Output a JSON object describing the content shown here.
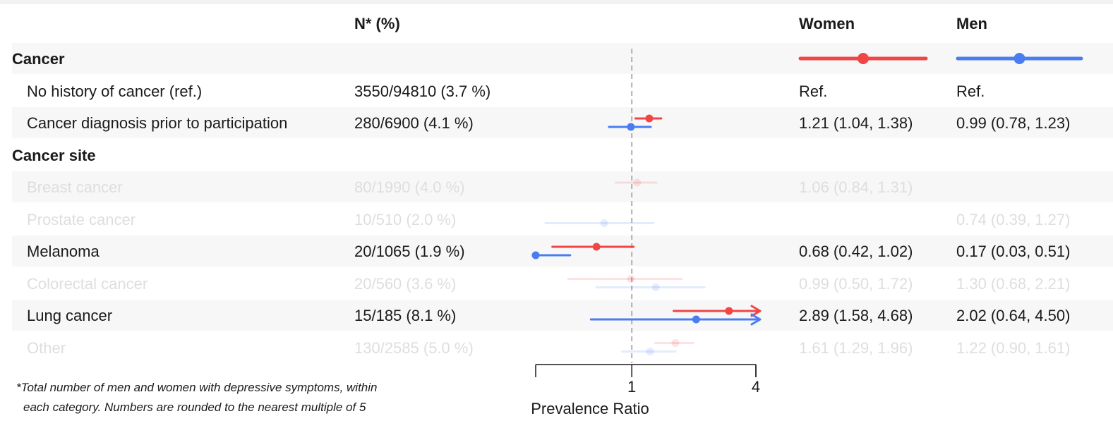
{
  "header": {
    "n_label": "N* (%)",
    "women_label": "Women",
    "men_label": "Men"
  },
  "colors": {
    "women": "#f04646",
    "men": "#4a7df0",
    "faded_text": "#dedede",
    "band": "#f7f7f7",
    "reference_line": "#b0b0b0"
  },
  "footnote": {
    "line1": "*Total number of men and women with depressive symptoms, within",
    "line2": "each category. Numbers are rounded to the nearest multiple of 5"
  },
  "chart_data": {
    "type": "forest",
    "xlabel": "Prevalence Ratio",
    "scale": "log",
    "xlim": [
      0.35,
      4
    ],
    "ticks": [
      1,
      4
    ],
    "tick_labels": [
      "1",
      "4"
    ],
    "reference_value": 1,
    "legend": [
      {
        "name": "Women",
        "color": "#f04646"
      },
      {
        "name": "Men",
        "color": "#4a7df0"
      }
    ],
    "rows": [
      {
        "kind": "section",
        "label": "Cancer"
      },
      {
        "kind": "item",
        "label": "No history of cancer (ref.)",
        "n": "3550/94810 (3.7 %)",
        "women_text": "Ref.",
        "men_text": "Ref.",
        "faded": false,
        "women": null,
        "men": null
      },
      {
        "kind": "item",
        "label": "Cancer diagnosis prior to participation",
        "n": "280/6900 (4.1 %)",
        "women_text": "1.21 (1.04, 1.38)",
        "men_text": "0.99 (0.78, 1.23)",
        "faded": false,
        "women": {
          "est": 1.21,
          "lo": 1.04,
          "hi": 1.38
        },
        "men": {
          "est": 0.99,
          "lo": 0.78,
          "hi": 1.23
        }
      },
      {
        "kind": "section",
        "label": "Cancer site"
      },
      {
        "kind": "item",
        "label": "Breast cancer",
        "n": "80/1990 (4.0 %)",
        "women_text": "1.06 (0.84, 1.31)",
        "men_text": "",
        "faded": true,
        "women": {
          "est": 1.06,
          "lo": 0.84,
          "hi": 1.31
        },
        "men": null
      },
      {
        "kind": "item",
        "label": "Prostate cancer",
        "n": "10/510 (2.0 %)",
        "women_text": "",
        "men_text": "0.74 (0.39, 1.27)",
        "faded": true,
        "women": null,
        "men": {
          "est": 0.74,
          "lo": 0.39,
          "hi": 1.27
        }
      },
      {
        "kind": "item",
        "label": "Melanoma",
        "n": "20/1065 (1.9 %)",
        "women_text": "0.68 (0.42, 1.02)",
        "men_text": "0.17 (0.03, 0.51)",
        "faded": false,
        "women": {
          "est": 0.68,
          "lo": 0.42,
          "hi": 1.02
        },
        "men": {
          "est": 0.17,
          "lo": 0.03,
          "hi": 0.51
        }
      },
      {
        "kind": "item",
        "label": "Colorectal cancer",
        "n": "20/560 (3.6 %)",
        "women_text": "0.99 (0.50, 1.72)",
        "men_text": "1.30 (0.68, 2.21)",
        "faded": true,
        "women": {
          "est": 0.99,
          "lo": 0.5,
          "hi": 1.72
        },
        "men": {
          "est": 1.3,
          "lo": 0.68,
          "hi": 2.21
        }
      },
      {
        "kind": "item",
        "label": "Lung cancer",
        "n": "15/185 (8.1 %)",
        "women_text": "2.89 (1.58, 4.68)",
        "men_text": "2.02 (0.64, 4.50)",
        "faded": false,
        "women": {
          "est": 2.89,
          "lo": 1.58,
          "hi": 4.68
        },
        "men": {
          "est": 2.02,
          "lo": 0.64,
          "hi": 4.5
        }
      },
      {
        "kind": "item",
        "label": "Other",
        "n": "130/2585 (5.0 %)",
        "women_text": "1.61 (1.29, 1.96)",
        "men_text": "1.22 (0.90, 1.61)",
        "faded": true,
        "women": {
          "est": 1.61,
          "lo": 1.29,
          "hi": 1.96
        },
        "men": {
          "est": 1.22,
          "lo": 0.9,
          "hi": 1.61
        }
      }
    ]
  }
}
